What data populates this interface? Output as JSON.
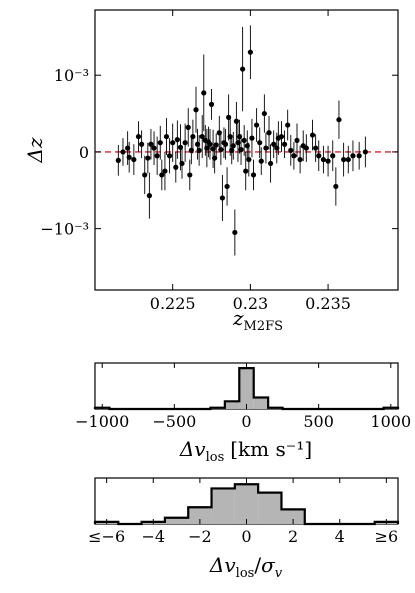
{
  "chart_data": [
    {
      "type": "scatter",
      "title": "",
      "xlabel": "z",
      "xlabel_sub": "M2FS",
      "ylabel": "Δz",
      "xlim": [
        0.22,
        0.2395
      ],
      "ylim": [
        -0.0018,
        0.00185
      ],
      "xticks": [
        0.225,
        0.23,
        0.235
      ],
      "xtick_labels": [
        "0.225",
        "0.23",
        "0.235"
      ],
      "yticks": [
        0.001,
        0,
        -0.001
      ],
      "ytick_labels": [
        "10⁻³",
        "0",
        "−10⁻³"
      ],
      "reference_line": {
        "y": 0,
        "style": "dashed",
        "color": "#e0202a"
      },
      "marker_color": "#000000",
      "points": [
        {
          "x": 0.2215,
          "y": -0.00011,
          "ye": 0.0002
        },
        {
          "x": 0.2218,
          "y": 0.0,
          "ye": 0.00018
        },
        {
          "x": 0.2221,
          "y": 5e-05,
          "ye": 0.00022
        },
        {
          "x": 0.2222,
          "y": -7e-05,
          "ye": 0.0002
        },
        {
          "x": 0.2225,
          "y": -0.0001,
          "ye": 0.0002
        },
        {
          "x": 0.2228,
          "y": 0.0002,
          "ye": 0.0002
        },
        {
          "x": 0.223,
          "y": 0.0001,
          "ye": 0.00018
        },
        {
          "x": 0.2232,
          "y": -0.0003,
          "ye": 0.00025
        },
        {
          "x": 0.2234,
          "y": -8e-05,
          "ye": 0.0002
        },
        {
          "x": 0.2235,
          "y": -0.00057,
          "ye": 0.0003
        },
        {
          "x": 0.2236,
          "y": 0.0001,
          "ye": 0.0002
        },
        {
          "x": 0.2238,
          "y": 5e-05,
          "ye": 0.00022
        },
        {
          "x": 0.224,
          "y": -5e-05,
          "ye": 0.00025
        },
        {
          "x": 0.2242,
          "y": 0.00012,
          "ye": 0.00022
        },
        {
          "x": 0.2243,
          "y": -0.0003,
          "ye": 0.0002
        },
        {
          "x": 0.2245,
          "y": -0.00025,
          "ye": 0.00025
        },
        {
          "x": 0.2246,
          "y": 0.0002,
          "ye": 0.00024
        },
        {
          "x": 0.2248,
          "y": -5e-05,
          "ye": 0.00023
        },
        {
          "x": 0.225,
          "y": 0.00012,
          "ye": 0.00025
        },
        {
          "x": 0.2252,
          "y": -0.0002,
          "ye": 0.0002
        },
        {
          "x": 0.2253,
          "y": 0.00016,
          "ye": 0.00025
        },
        {
          "x": 0.2255,
          "y": 6e-05,
          "ye": 0.0003
        },
        {
          "x": 0.2256,
          "y": -0.00015,
          "ye": 0.0002
        },
        {
          "x": 0.2258,
          "y": 0.00012,
          "ye": 0.00025
        },
        {
          "x": 0.226,
          "y": 0.00032,
          "ye": 0.00025
        },
        {
          "x": 0.2261,
          "y": -0.0003,
          "ye": 0.0002
        },
        {
          "x": 0.2262,
          "y": 2e-05,
          "ye": 0.00018
        },
        {
          "x": 0.2263,
          "y": 0.0002,
          "ye": 0.00022
        },
        {
          "x": 0.2265,
          "y": 0.00055,
          "ye": 0.0003
        },
        {
          "x": 0.2266,
          "y": 0.0001,
          "ye": 0.0002
        },
        {
          "x": 0.2267,
          "y": 2e-05,
          "ye": 0.0002
        },
        {
          "x": 0.2269,
          "y": 0.0002,
          "ye": 0.00028
        },
        {
          "x": 0.227,
          "y": 0.00077,
          "ye": 0.0005
        },
        {
          "x": 0.2271,
          "y": 0.00015,
          "ye": 0.0002
        },
        {
          "x": 0.2272,
          "y": 5e-05,
          "ye": 0.00025
        },
        {
          "x": 0.2273,
          "y": 0.00013,
          "ye": 0.0002
        },
        {
          "x": 0.2274,
          "y": 0.0001,
          "ye": 0.0002
        },
        {
          "x": 0.2275,
          "y": 0.00062,
          "ye": 0.0002
        },
        {
          "x": 0.2276,
          "y": 4e-05,
          "ye": 0.00025
        },
        {
          "x": 0.2277,
          "y": -8e-05,
          "ye": 0.0002
        },
        {
          "x": 0.2278,
          "y": 9e-05,
          "ye": 0.00015
        },
        {
          "x": 0.228,
          "y": 0.00025,
          "ye": 0.00022
        },
        {
          "x": 0.2281,
          "y": 3e-05,
          "ye": 0.0002
        },
        {
          "x": 0.2282,
          "y": -0.0006,
          "ye": 0.0003
        },
        {
          "x": 0.2283,
          "y": 0.00012,
          "ye": 0.0002
        },
        {
          "x": 0.2284,
          "y": 0.0001,
          "ye": 0.0002
        },
        {
          "x": 0.2285,
          "y": -0.00045,
          "ye": 0.00025
        },
        {
          "x": 0.2286,
          "y": 0.00045,
          "ye": 0.0003
        },
        {
          "x": 0.2287,
          "y": 0.0002,
          "ye": 0.00025
        },
        {
          "x": 0.2288,
          "y": 2e-05,
          "ye": 0.00018
        },
        {
          "x": 0.2289,
          "y": 8e-05,
          "ye": 0.00018
        },
        {
          "x": 0.229,
          "y": -0.00105,
          "ye": 0.0003
        },
        {
          "x": 0.2291,
          "y": 0.0004,
          "ye": 0.00025
        },
        {
          "x": 0.2292,
          "y": 0.00012,
          "ye": 0.00025
        },
        {
          "x": 0.2293,
          "y": 0.0002,
          "ye": 0.00022
        },
        {
          "x": 0.2294,
          "y": 3e-05,
          "ye": 0.0002
        },
        {
          "x": 0.2295,
          "y": 0.00108,
          "ye": 0.00055
        },
        {
          "x": 0.2296,
          "y": 0.00015,
          "ye": 0.0002
        },
        {
          "x": 0.2297,
          "y": -0.00025,
          "ye": 0.00025
        },
        {
          "x": 0.2298,
          "y": 8e-05,
          "ye": 0.0002
        },
        {
          "x": 0.2299,
          "y": -0.0001,
          "ye": 0.00022
        },
        {
          "x": 0.23,
          "y": 0.0013,
          "ye": 0.00035
        },
        {
          "x": 0.2301,
          "y": 0.00018,
          "ye": 0.00025
        },
        {
          "x": 0.2302,
          "y": -0.0003,
          "ye": 0.0002
        },
        {
          "x": 0.2304,
          "y": 0.00035,
          "ye": 0.00022
        },
        {
          "x": 0.2306,
          "y": 0.00012,
          "ye": 0.0002
        },
        {
          "x": 0.2307,
          "y": -0.00012,
          "ye": 0.00018
        },
        {
          "x": 0.2309,
          "y": 0.0005,
          "ye": 0.00025
        },
        {
          "x": 0.231,
          "y": 5e-05,
          "ye": 0.0002
        },
        {
          "x": 0.2312,
          "y": 0.00025,
          "ye": 0.00022
        },
        {
          "x": 0.2313,
          "y": -0.00015,
          "ye": 0.00025
        },
        {
          "x": 0.2315,
          "y": 0.0001,
          "ye": 0.00018
        },
        {
          "x": 0.2317,
          "y": 5e-05,
          "ye": 0.0002
        },
        {
          "x": 0.2318,
          "y": 0.00018,
          "ye": 0.00022
        },
        {
          "x": 0.232,
          "y": 0.0002,
          "ye": 0.0002
        },
        {
          "x": 0.2322,
          "y": 0.0001,
          "ye": 0.00018
        },
        {
          "x": 0.2324,
          "y": 0.00035,
          "ye": 0.0002
        },
        {
          "x": 0.2326,
          "y": 2e-05,
          "ye": 0.0002
        },
        {
          "x": 0.2328,
          "y": -5e-05,
          "ye": 0.00018
        },
        {
          "x": 0.233,
          "y": 0.00015,
          "ye": 0.00022
        },
        {
          "x": 0.2332,
          "y": -0.0001,
          "ye": 0.00018
        },
        {
          "x": 0.2334,
          "y": 8e-05,
          "ye": 0.0002
        },
        {
          "x": 0.2336,
          "y": 5e-05,
          "ye": 0.00018
        },
        {
          "x": 0.234,
          "y": 0.00022,
          "ye": 0.0002
        },
        {
          "x": 0.2342,
          "y": 5e-05,
          "ye": 0.00018
        },
        {
          "x": 0.2344,
          "y": -5e-05,
          "ye": 0.0002
        },
        {
          "x": 0.2347,
          "y": -0.0001,
          "ye": 0.00018
        },
        {
          "x": 0.235,
          "y": -0.00012,
          "ye": 0.0002
        },
        {
          "x": 0.2353,
          "y": -5e-05,
          "ye": 0.0002
        },
        {
          "x": 0.2355,
          "y": -0.00045,
          "ye": 0.00025
        },
        {
          "x": 0.2357,
          "y": 0.00042,
          "ye": 0.00025
        },
        {
          "x": 0.236,
          "y": -0.0001,
          "ye": 0.00022
        },
        {
          "x": 0.2363,
          "y": -0.0001,
          "ye": 0.00018
        },
        {
          "x": 0.2366,
          "y": -5e-05,
          "ye": 0.0002
        },
        {
          "x": 0.237,
          "y": -5e-05,
          "ye": 0.00018
        },
        {
          "x": 0.2374,
          "y": 0.0,
          "ye": 0.0002
        }
      ]
    },
    {
      "type": "bar",
      "title": "",
      "xlabel": "Δv",
      "xlabel_sub": "los",
      "xlabel_unit": "[km s⁻¹]",
      "xlim": [
        -1050,
        1050
      ],
      "xticks": [
        -1000,
        -500,
        0,
        500,
        1000
      ],
      "xtick_labels": [
        "−1000",
        "−500",
        "0",
        "500",
        "1000"
      ],
      "fill_color": "#b5b5b5",
      "edge_color": "#000000",
      "bin_edges": [
        -1050,
        -950,
        -850,
        -750,
        -650,
        -550,
        -450,
        -350,
        -250,
        -150,
        -50,
        50,
        150,
        250,
        350,
        450,
        550,
        650,
        750,
        850,
        950,
        1050
      ],
      "values": [
        1,
        0,
        0,
        0,
        0,
        0,
        0,
        0,
        1,
        6,
        32,
        9,
        1,
        0,
        0,
        0,
        0,
        0,
        0,
        0,
        1
      ],
      "ylim": [
        0,
        36
      ]
    },
    {
      "type": "bar",
      "title": "",
      "xlabel": "Δv",
      "xlabel_sub": "los",
      "xlabel_denominator": "σ",
      "xlabel_denominator_sub": "v",
      "xlim": [
        -6.5,
        6.5
      ],
      "xticks": [
        -6,
        -4,
        -2,
        0,
        2,
        4,
        6
      ],
      "xtick_labels": [
        "≤−6",
        "−4",
        "−2",
        "0",
        "2",
        "4",
        "≥6"
      ],
      "fill_color": "#b5b5b5",
      "edge_color": "#000000",
      "bin_edges": [
        -6.5,
        -5.5,
        -4.5,
        -3.5,
        -2.5,
        -1.5,
        -0.5,
        0.5,
        1.5,
        2.5,
        3.5,
        4.5,
        5.5,
        6.5
      ],
      "values": [
        1,
        0,
        1,
        3,
        8,
        17,
        19,
        15,
        7,
        0,
        0,
        0,
        1
      ],
      "ylim": [
        0,
        22
      ]
    }
  ]
}
